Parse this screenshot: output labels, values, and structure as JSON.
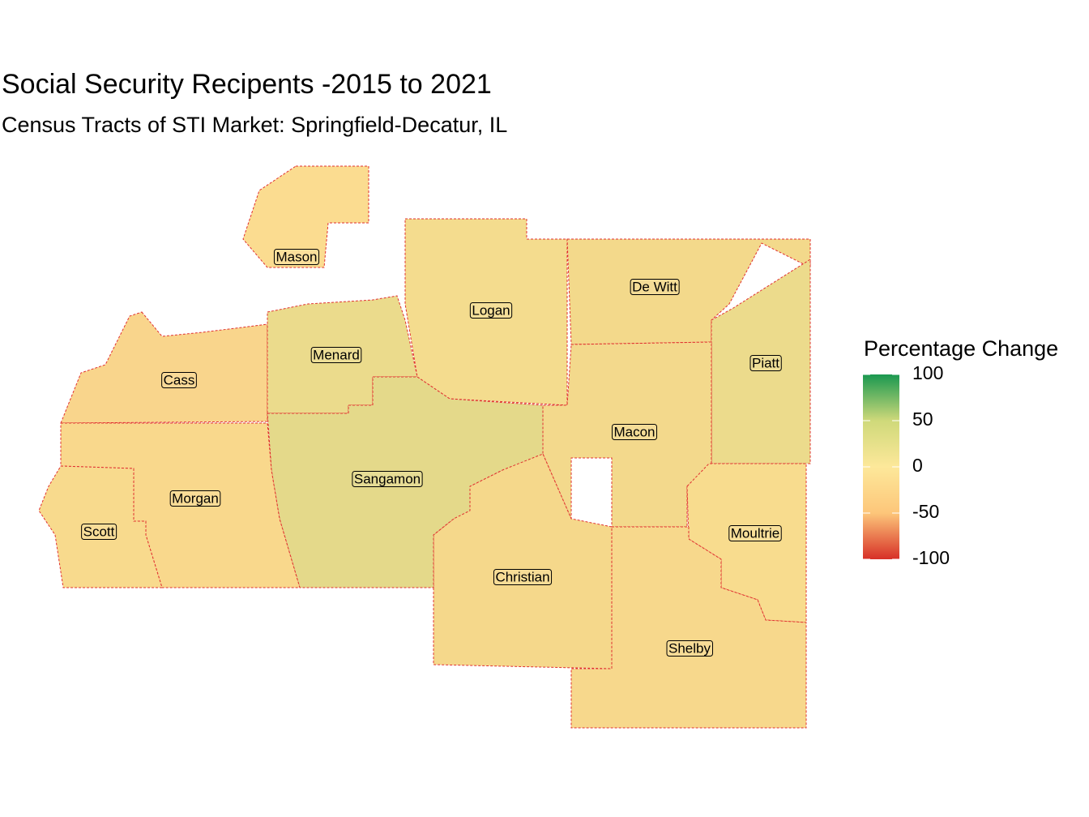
{
  "title": "Social Security Recipents -2015 to 2021",
  "subtitle": "Census Tracts of STI Market: Springfield-Decatur, IL",
  "legend": {
    "title": "Percentage Change",
    "lim": [
      -100,
      100
    ],
    "ticks": [
      100,
      50,
      0,
      -50,
      -100
    ],
    "colors": [
      "#d73027",
      "#fdc67a",
      "#fde89a",
      "#cfd97a",
      "#1a9850"
    ]
  },
  "counties": [
    {
      "label": "Mason"
    },
    {
      "label": "De Witt"
    },
    {
      "label": "Logan"
    },
    {
      "label": "Menard"
    },
    {
      "label": "Piatt"
    },
    {
      "label": "Cass"
    },
    {
      "label": "Macon"
    },
    {
      "label": "Sangamon"
    },
    {
      "label": "Morgan"
    },
    {
      "label": "Scott"
    },
    {
      "label": "Moultrie"
    },
    {
      "label": "Christian"
    },
    {
      "label": "Shelby"
    }
  ]
}
